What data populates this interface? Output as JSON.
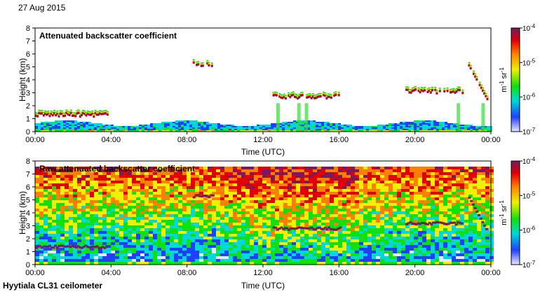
{
  "header": {
    "date": "27 Aug 2015"
  },
  "footer": {
    "site": "Hyytiala CL31 ceilometer"
  },
  "colorbar": {
    "ticks": [
      "10-4",
      "10-5",
      "10-6",
      "10-7"
    ],
    "tick_labels": [
      {
        "base": "10",
        "exp": "-4"
      },
      {
        "base": "10",
        "exp": "-5"
      },
      {
        "base": "10",
        "exp": "-6"
      },
      {
        "base": "10",
        "exp": "-7"
      }
    ],
    "unit": "m-1 sr-1",
    "unit_base1": "m",
    "unit_exp1": "-1",
    "unit_base2": " sr",
    "unit_exp2": "-1",
    "colors": [
      "#e8e8ff",
      "#2040ff",
      "#00d8d8",
      "#10e010",
      "#f0f000",
      "#ff8000",
      "#e00000",
      "#7a1860"
    ]
  },
  "chart_data": [
    {
      "type": "heatmap",
      "title": "Attenuated backscatter coefficient",
      "xlabel": "Time (UTC)",
      "ylabel": "Height (km)",
      "x_ticks": [
        "00:00",
        "04:00",
        "08:00",
        "12:00",
        "16:00",
        "20:00",
        "00:00"
      ],
      "y_ticks": [
        "0",
        "1",
        "2",
        "3",
        "4",
        "5",
        "6",
        "7",
        "8"
      ],
      "xlim": [
        0,
        24
      ],
      "ylim": [
        0,
        8
      ],
      "color_scale": [
        1e-07,
        0.0001
      ],
      "features": [
        {
          "name": "boundary layer",
          "hours": [
            0,
            24
          ],
          "height_km": [
            0,
            0.7
          ]
        },
        {
          "name": "early cloud layer",
          "hours": [
            0,
            3.8
          ],
          "height_km": 1.4
        },
        {
          "name": "mid-level cloud",
          "hours": [
            8.3,
            9.3
          ],
          "height_km": 5.3
        },
        {
          "name": "afternoon cloud layer",
          "hours": [
            12.5,
            16
          ],
          "height_km": 2.8
        },
        {
          "name": "evening cloud layer",
          "hours": [
            19.5,
            22.5
          ],
          "height_km": 3.2
        },
        {
          "name": "descending layer",
          "hours": [
            22.8,
            23.8
          ],
          "height_km": [
            5.2,
            2.5
          ]
        }
      ]
    },
    {
      "type": "heatmap",
      "title": "Raw attenuated backscatter coefficient",
      "xlabel": "Time (UTC)",
      "ylabel": "Height (km)",
      "x_ticks": [
        "00:00",
        "04:00",
        "08:00",
        "12:00",
        "16:00",
        "20:00",
        "00:00"
      ],
      "y_ticks": [
        "0",
        "1",
        "2",
        "3",
        "4",
        "5",
        "6",
        "7",
        "8"
      ],
      "xlim": [
        0,
        24
      ],
      "ylim": [
        0,
        8
      ],
      "color_scale": [
        1e-07,
        0.0001
      ]
    }
  ]
}
